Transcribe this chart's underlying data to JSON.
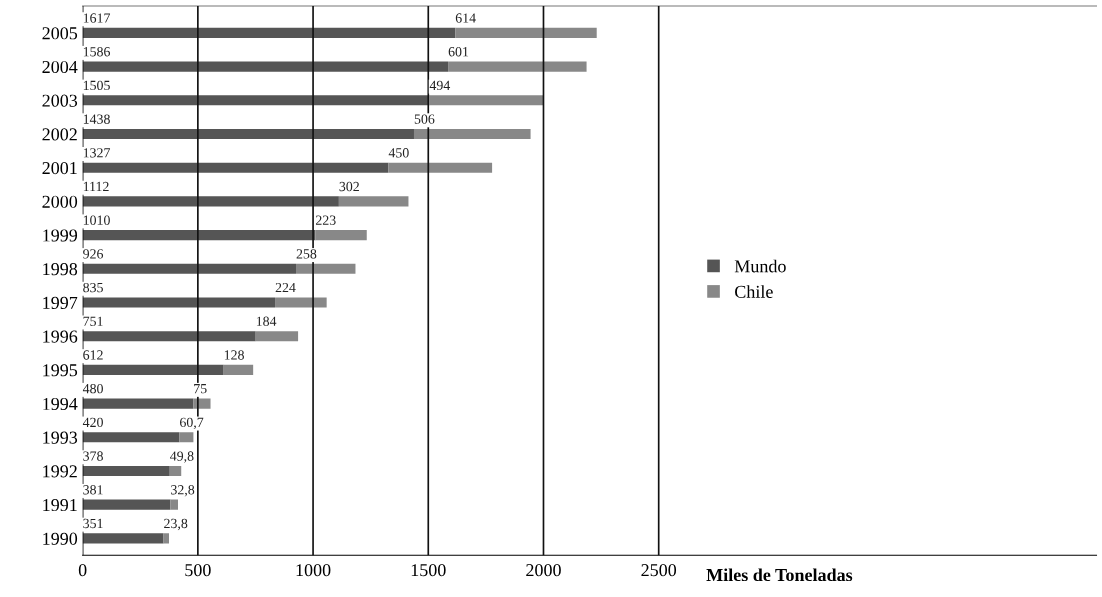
{
  "chart_data": {
    "type": "bar",
    "orientation": "horizontal",
    "stacked": true,
    "xlabel": "Miles de Toneladas",
    "categories": [
      "2005",
      "2004",
      "2003",
      "2002",
      "2001",
      "2000",
      "1999",
      "1998",
      "1997",
      "1996",
      "1995",
      "1994",
      "1993",
      "1992",
      "1991",
      "1990"
    ],
    "series": [
      {
        "name": "Mundo",
        "color": "#555555",
        "values": [
          1617,
          1586,
          1505,
          1438,
          1327,
          1112,
          1010,
          926,
          835,
          751,
          612,
          480,
          420,
          378,
          381,
          351
        ],
        "value_labels": [
          "1617",
          "1586",
          "1505",
          "1438",
          "1327",
          "1112",
          "1010",
          "926",
          "835",
          "751",
          "612",
          "480",
          "420",
          "378",
          "381",
          "351"
        ]
      },
      {
        "name": "Chile",
        "color": "#888888",
        "values": [
          614,
          601,
          494,
          506,
          450,
          302,
          223,
          258,
          224,
          184,
          128,
          75,
          60.7,
          49.8,
          32.8,
          23.8
        ],
        "value_labels": [
          "614",
          "601",
          "494",
          "506",
          "450",
          "302",
          "223",
          "258",
          "224",
          "184",
          "128",
          "75",
          "60,7",
          "49,8",
          "32,8",
          "23,8"
        ]
      }
    ],
    "xlim": [
      0,
      4400
    ],
    "xticks": [
      0,
      500,
      1000,
      1500,
      2000,
      2500
    ],
    "grid": "x",
    "legend": "right"
  }
}
